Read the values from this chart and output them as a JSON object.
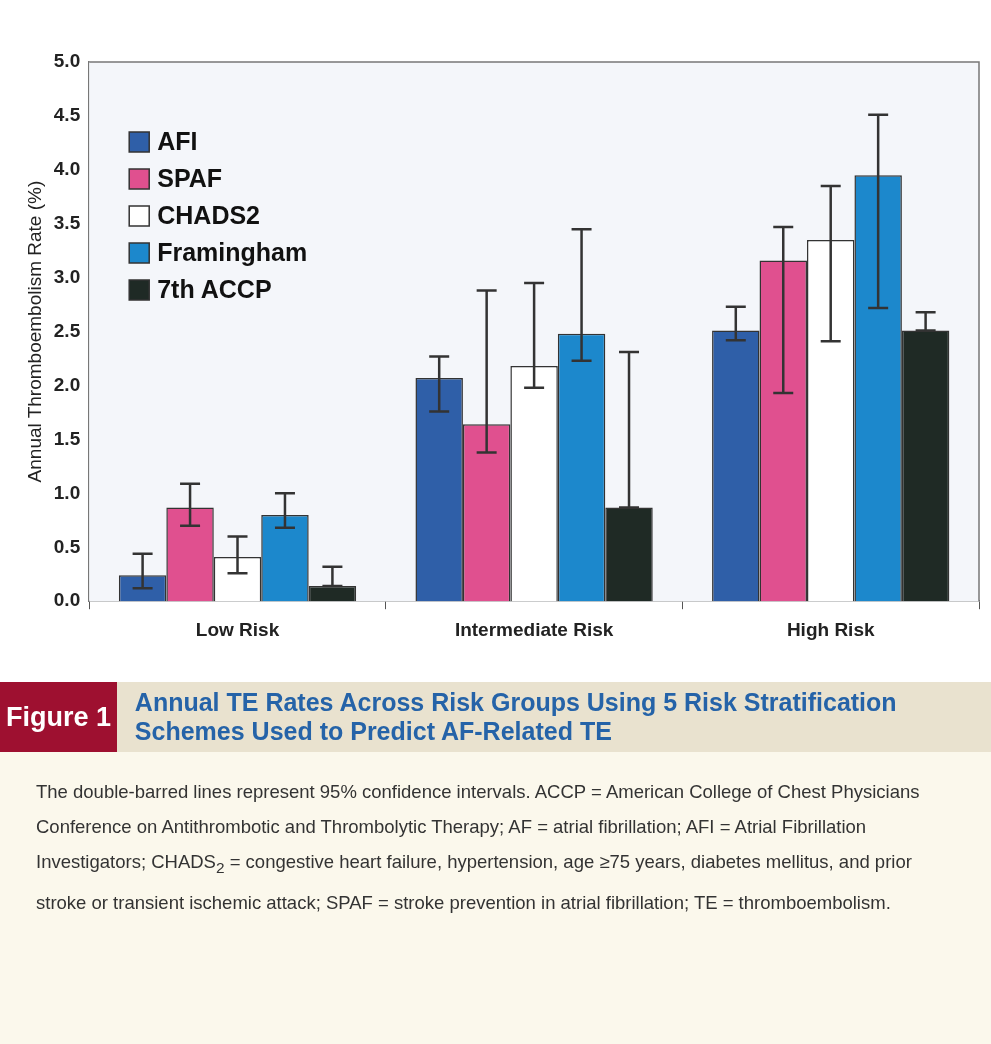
{
  "chart_data": {
    "type": "bar",
    "title": "Annual TE Rates Across Risk Groups Using 5 Risk Stratification Schemes Used to Predict AF-Related TE",
    "ylabel": "Annual Thromboembolism Rate (%)",
    "annotations": [
      "Figure 1",
      "The double-barred lines represent 95% confidence intervals. ACCP = American College of Chest Physicians Conference on Antithrombotic and Thrombolytic Therapy; AF = atrial fibrillation; AFI = Atrial Fibrillation Investigators; CHADS$_{2}$ = congestive heart failure, hypertension, age ≥75 years, diabetes mellitus, and prior stroke or transient ischemic attack; SPAF = stroke prevention in atrial fibrillation; TE = thromboembolism."
    ],
    "categories": [
      "Low Risk",
      "Intermediate Risk",
      "High Risk"
    ],
    "series": [
      {
        "name": "AFI",
        "color": "#2f5fa8",
        "values": [
          0.24,
          2.07,
          2.51
        ],
        "errors": [
          [
            0.12,
            0.44
          ],
          [
            1.76,
            2.27
          ],
          [
            2.42,
            2.73
          ]
        ]
      },
      {
        "name": "SPAF",
        "color": "#e0508f",
        "values": [
          0.87,
          1.64,
          3.16
        ],
        "errors": [
          [
            0.7,
            1.09
          ],
          [
            1.38,
            2.88
          ],
          [
            1.93,
            3.47
          ]
        ]
      },
      {
        "name": "CHADS2",
        "color": "#ffffff",
        "values": [
          0.41,
          2.18,
          3.35
        ],
        "errors": [
          [
            0.26,
            0.6
          ],
          [
            1.98,
            2.95
          ],
          [
            2.41,
            3.85
          ]
        ]
      },
      {
        "name": "Framingham",
        "color": "#1c88cc",
        "values": [
          0.8,
          2.48,
          3.95
        ],
        "errors": [
          [
            0.68,
            1.0
          ],
          [
            2.23,
            3.45
          ],
          [
            2.72,
            4.51
          ]
        ]
      },
      {
        "name": "7th ACCP",
        "color": "#1f2a25",
        "values": [
          0.14,
          0.87,
          2.51
        ],
        "errors": [
          [
            0.14,
            0.32
          ],
          [
            0.87,
            2.31
          ],
          [
            2.51,
            2.68
          ]
        ]
      }
    ],
    "ylim": [
      0,
      5
    ],
    "yticks": [
      {
        "value": 0,
        "label": "0.0"
      },
      {
        "value": 0.5,
        "label": "0.5"
      },
      {
        "value": 1,
        "label": "1.0"
      },
      {
        "value": 1.5,
        "label": "1.5"
      },
      {
        "value": 2,
        "label": "2.0"
      },
      {
        "value": 2.5,
        "label": "2.5"
      },
      {
        "value": 3,
        "label": "3.0"
      },
      {
        "value": 3.5,
        "label": "3.5"
      },
      {
        "value": 4,
        "label": "4.0"
      },
      {
        "value": 4.5,
        "label": "4.5"
      },
      {
        "value": 5,
        "label": "5.0"
      }
    ],
    "grid": false,
    "legend": "top left"
  }
}
